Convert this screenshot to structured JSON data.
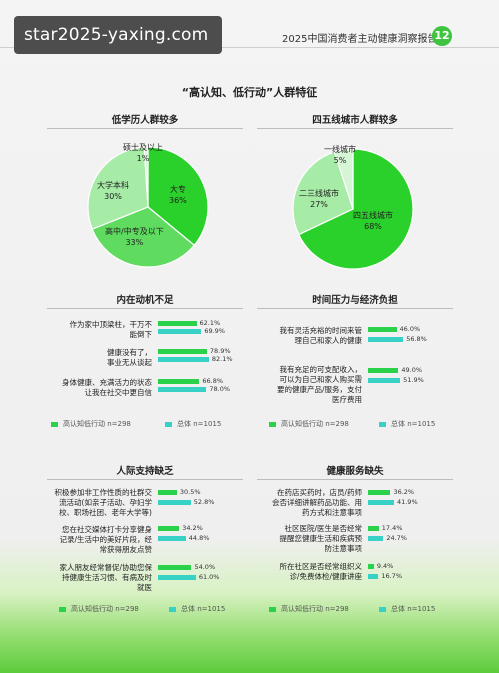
{
  "header": {
    "watermark": "star2025-yaxing.com",
    "report_title": "2025中国消费者主动健康洞察报告",
    "page_number": "12"
  },
  "main_title": "“高认知、低行动”人群特征",
  "pies": [
    {
      "title": "低学历人群较多",
      "slices": [
        {
          "label": "大专",
          "value": "36%",
          "pct": 36,
          "color": "#2bd12b"
        },
        {
          "label": "高中/中专及以下",
          "value": "33%",
          "pct": 33,
          "color": "#5fdb5f"
        },
        {
          "label": "大学本科",
          "value": "30%",
          "pct": 30,
          "color": "#a6eba6"
        },
        {
          "label": "硕士及以上",
          "value": "1%",
          "pct": 1,
          "color": "#d5f5d5"
        }
      ]
    },
    {
      "title": "四五线城市人群较多",
      "slices": [
        {
          "label": "四五线城市",
          "value": "68%",
          "pct": 68,
          "color": "#2bd12b"
        },
        {
          "label": "二三线城市",
          "value": "27%",
          "pct": 27,
          "color": "#a6eba6"
        },
        {
          "label": "一线城市",
          "value": "5%",
          "pct": 5,
          "color": "#d5f5d5"
        }
      ]
    }
  ],
  "bar_panels": [
    {
      "title": "内在动机不足",
      "rows": [
        {
          "label": "作为家中顶梁柱，干万不\n能倒下",
          "green": "62.1%",
          "teal": "69.9%",
          "g": 62.1,
          "t": 69.9
        },
        {
          "label": "健康没有了，\n事业无从谈起",
          "green": "78.9%",
          "teal": "82.1%",
          "g": 78.9,
          "t": 82.1
        },
        {
          "label": "身体健康、充满活力的状态\n让我在社交中更自信",
          "green": "66.8%",
          "teal": "78.0%",
          "g": 66.8,
          "t": 78.0
        }
      ]
    },
    {
      "title": "时间压力与经济负担",
      "rows": [
        {
          "label": "我有灵活充裕的时间来管\n理自己和家人的健康",
          "green": "46.0%",
          "teal": "56.8%",
          "g": 46.0,
          "t": 56.8
        },
        {
          "label": "我有充足的可支配收入，\n可以为自己和家人购买需\n要的健康产品/服务，支付\n医疗费用",
          "green": "49.0%",
          "teal": "51.9%",
          "g": 49.0,
          "t": 51.9
        }
      ]
    },
    {
      "title": "人际支持缺乏",
      "rows": [
        {
          "label": "积极参加非工作性质的社群交\n流活动(如亲子活动、孕妇学\n校、职场社团、老年大学等)",
          "green": "30.5%",
          "teal": "52.8%",
          "g": 30.5,
          "t": 52.8
        },
        {
          "label": "您在社交媒体打卡分享健身\n记录/生活中的美好片段，经\n常获得朋友点赞",
          "green": "34.2%",
          "teal": "44.8%",
          "g": 34.2,
          "t": 44.8
        },
        {
          "label": "家人朋友经常督促/协助您保\n持健康生活习惯、有病及时\n就医",
          "green": "54.0%",
          "teal": "61.0%",
          "g": 54.0,
          "t": 61.0
        }
      ]
    },
    {
      "title": "健康服务缺失",
      "rows": [
        {
          "label": "在药店买药时，店员/药师\n会否详细讲解药品功能、用\n药方式和注意事项",
          "green": "36.2%",
          "teal": "41.9%",
          "g": 36.2,
          "t": 41.9
        },
        {
          "label": "社区医院/医生是否经常\n提醒您健康生活和疾病预\n防注意事项",
          "green": "17.4%",
          "teal": "24.7%",
          "g": 17.4,
          "t": 24.7
        },
        {
          "label": "所在社区是否经常组织义\n诊/免费体检/健康讲座",
          "green": "9.4%",
          "teal": "16.7%",
          "g": 9.4,
          "t": 16.7
        }
      ]
    }
  ],
  "legend": {
    "green": "高认知低行动 n=298",
    "teal": "总体 n=1015"
  }
}
